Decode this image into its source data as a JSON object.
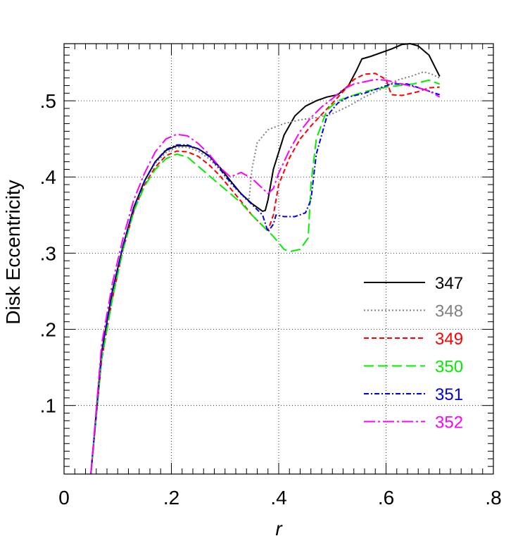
{
  "chart_data": {
    "type": "line",
    "title": "",
    "xlabel": "r",
    "ylabel": "Disk Eccentricity",
    "xlim": [
      0,
      0.8
    ],
    "ylim": [
      0.01,
      0.575
    ],
    "grid": true,
    "legend_position": "bottom-right",
    "x_ticks": [
      {
        "value": 0,
        "label": "0"
      },
      {
        "value": 0.2,
        "label": ".2"
      },
      {
        "value": 0.4,
        "label": ".4"
      },
      {
        "value": 0.6,
        "label": ".6"
      },
      {
        "value": 0.8,
        "label": ".8"
      }
    ],
    "y_ticks": [
      {
        "value": 0.1,
        "label": ".1"
      },
      {
        "value": 0.2,
        "label": ".2"
      },
      {
        "value": 0.3,
        "label": ".3"
      },
      {
        "value": 0.4,
        "label": ".4"
      },
      {
        "value": 0.5,
        "label": ".5"
      }
    ],
    "series": [
      {
        "name": "347",
        "color": "#000000",
        "dash": "solid",
        "points": [
          [
            0.05,
            0.01
          ],
          [
            0.07,
            0.17
          ],
          [
            0.09,
            0.25
          ],
          [
            0.11,
            0.31
          ],
          [
            0.13,
            0.36
          ],
          [
            0.15,
            0.395
          ],
          [
            0.17,
            0.42
          ],
          [
            0.19,
            0.435
          ],
          [
            0.21,
            0.441
          ],
          [
            0.23,
            0.441
          ],
          [
            0.25,
            0.437
          ],
          [
            0.27,
            0.428
          ],
          [
            0.29,
            0.413
          ],
          [
            0.31,
            0.395
          ],
          [
            0.33,
            0.378
          ],
          [
            0.35,
            0.365
          ],
          [
            0.37,
            0.355
          ],
          [
            0.375,
            0.356
          ],
          [
            0.38,
            0.37
          ],
          [
            0.39,
            0.41
          ],
          [
            0.41,
            0.455
          ],
          [
            0.43,
            0.48
          ],
          [
            0.45,
            0.493
          ],
          [
            0.47,
            0.5
          ],
          [
            0.49,
            0.505
          ],
          [
            0.51,
            0.508
          ],
          [
            0.53,
            0.52
          ],
          [
            0.545,
            0.54
          ],
          [
            0.555,
            0.555
          ],
          [
            0.57,
            0.558
          ],
          [
            0.59,
            0.563
          ],
          [
            0.61,
            0.568
          ],
          [
            0.63,
            0.574
          ],
          [
            0.645,
            0.575
          ],
          [
            0.66,
            0.572
          ],
          [
            0.68,
            0.56
          ],
          [
            0.7,
            0.532
          ]
        ]
      },
      {
        "name": "348",
        "color": "#808080",
        "dash": "dotted",
        "points": [
          [
            0.05,
            0.01
          ],
          [
            0.07,
            0.17
          ],
          [
            0.09,
            0.25
          ],
          [
            0.11,
            0.31
          ],
          [
            0.13,
            0.36
          ],
          [
            0.15,
            0.395
          ],
          [
            0.17,
            0.418
          ],
          [
            0.19,
            0.432
          ],
          [
            0.21,
            0.439
          ],
          [
            0.23,
            0.439
          ],
          [
            0.25,
            0.434
          ],
          [
            0.27,
            0.424
          ],
          [
            0.29,
            0.41
          ],
          [
            0.31,
            0.392
          ],
          [
            0.33,
            0.377
          ],
          [
            0.34,
            0.37
          ],
          [
            0.345,
            0.372
          ],
          [
            0.35,
            0.41
          ],
          [
            0.36,
            0.445
          ],
          [
            0.38,
            0.462
          ],
          [
            0.41,
            0.47
          ],
          [
            0.44,
            0.475
          ],
          [
            0.47,
            0.478
          ],
          [
            0.5,
            0.483
          ],
          [
            0.53,
            0.493
          ],
          [
            0.56,
            0.505
          ],
          [
            0.59,
            0.515
          ],
          [
            0.62,
            0.527
          ],
          [
            0.65,
            0.533
          ],
          [
            0.67,
            0.538
          ],
          [
            0.685,
            0.535
          ],
          [
            0.7,
            0.53
          ]
        ]
      },
      {
        "name": "349",
        "color": "#ff0000",
        "dash": "dashed",
        "points": [
          [
            0.05,
            0.01
          ],
          [
            0.07,
            0.16
          ],
          [
            0.09,
            0.24
          ],
          [
            0.11,
            0.305
          ],
          [
            0.13,
            0.355
          ],
          [
            0.15,
            0.39
          ],
          [
            0.17,
            0.413
          ],
          [
            0.19,
            0.428
          ],
          [
            0.21,
            0.434
          ],
          [
            0.23,
            0.433
          ],
          [
            0.25,
            0.427
          ],
          [
            0.27,
            0.416
          ],
          [
            0.29,
            0.402
          ],
          [
            0.31,
            0.385
          ],
          [
            0.33,
            0.368
          ],
          [
            0.35,
            0.35
          ],
          [
            0.37,
            0.336
          ],
          [
            0.38,
            0.33
          ],
          [
            0.39,
            0.35
          ],
          [
            0.4,
            0.39
          ],
          [
            0.42,
            0.425
          ],
          [
            0.44,
            0.45
          ],
          [
            0.46,
            0.467
          ],
          [
            0.48,
            0.482
          ],
          [
            0.5,
            0.497
          ],
          [
            0.52,
            0.512
          ],
          [
            0.54,
            0.528
          ],
          [
            0.56,
            0.535
          ],
          [
            0.58,
            0.536
          ],
          [
            0.6,
            0.528
          ],
          [
            0.61,
            0.508
          ],
          [
            0.63,
            0.507
          ],
          [
            0.66,
            0.512
          ],
          [
            0.68,
            0.517
          ],
          [
            0.7,
            0.518
          ]
        ]
      },
      {
        "name": "350",
        "color": "#00ee00",
        "dash": "longdash",
        "points": [
          [
            0.05,
            0.01
          ],
          [
            0.07,
            0.16
          ],
          [
            0.09,
            0.24
          ],
          [
            0.11,
            0.305
          ],
          [
            0.13,
            0.355
          ],
          [
            0.15,
            0.388
          ],
          [
            0.17,
            0.41
          ],
          [
            0.19,
            0.424
          ],
          [
            0.21,
            0.43
          ],
          [
            0.23,
            0.426
          ],
          [
            0.25,
            0.414
          ],
          [
            0.27,
            0.402
          ],
          [
            0.29,
            0.39
          ],
          [
            0.31,
            0.378
          ],
          [
            0.33,
            0.366
          ],
          [
            0.35,
            0.35
          ],
          [
            0.37,
            0.336
          ],
          [
            0.39,
            0.322
          ],
          [
            0.41,
            0.305
          ],
          [
            0.42,
            0.302
          ],
          [
            0.44,
            0.305
          ],
          [
            0.455,
            0.32
          ],
          [
            0.46,
            0.39
          ],
          [
            0.47,
            0.45
          ],
          [
            0.49,
            0.488
          ],
          [
            0.51,
            0.5
          ],
          [
            0.53,
            0.505
          ],
          [
            0.56,
            0.512
          ],
          [
            0.6,
            0.518
          ],
          [
            0.65,
            0.522
          ],
          [
            0.68,
            0.527
          ],
          [
            0.7,
            0.522
          ]
        ]
      },
      {
        "name": "351",
        "color": "#0000dd",
        "dash": "dashdot",
        "points": [
          [
            0.05,
            0.01
          ],
          [
            0.07,
            0.17
          ],
          [
            0.09,
            0.25
          ],
          [
            0.11,
            0.31
          ],
          [
            0.13,
            0.36
          ],
          [
            0.15,
            0.395
          ],
          [
            0.17,
            0.42
          ],
          [
            0.19,
            0.436
          ],
          [
            0.21,
            0.442
          ],
          [
            0.23,
            0.442
          ],
          [
            0.25,
            0.437
          ],
          [
            0.27,
            0.427
          ],
          [
            0.29,
            0.411
          ],
          [
            0.31,
            0.393
          ],
          [
            0.33,
            0.378
          ],
          [
            0.35,
            0.364
          ],
          [
            0.37,
            0.35
          ],
          [
            0.38,
            0.328
          ],
          [
            0.39,
            0.338
          ],
          [
            0.395,
            0.35
          ],
          [
            0.41,
            0.348
          ],
          [
            0.43,
            0.348
          ],
          [
            0.45,
            0.353
          ],
          [
            0.46,
            0.37
          ],
          [
            0.47,
            0.43
          ],
          [
            0.49,
            0.48
          ],
          [
            0.51,
            0.497
          ],
          [
            0.53,
            0.505
          ],
          [
            0.56,
            0.51
          ],
          [
            0.58,
            0.515
          ],
          [
            0.61,
            0.522
          ],
          [
            0.64,
            0.522
          ],
          [
            0.67,
            0.515
          ],
          [
            0.7,
            0.508
          ]
        ]
      },
      {
        "name": "352",
        "color": "#ff00ff",
        "dash": "longdashdot",
        "points": [
          [
            0.05,
            0.01
          ],
          [
            0.07,
            0.18
          ],
          [
            0.09,
            0.26
          ],
          [
            0.11,
            0.32
          ],
          [
            0.13,
            0.37
          ],
          [
            0.15,
            0.405
          ],
          [
            0.17,
            0.433
          ],
          [
            0.19,
            0.45
          ],
          [
            0.21,
            0.456
          ],
          [
            0.23,
            0.454
          ],
          [
            0.25,
            0.444
          ],
          [
            0.27,
            0.43
          ],
          [
            0.29,
            0.413
          ],
          [
            0.31,
            0.4
          ],
          [
            0.33,
            0.406
          ],
          [
            0.35,
            0.398
          ],
          [
            0.37,
            0.385
          ],
          [
            0.38,
            0.378
          ],
          [
            0.39,
            0.385
          ],
          [
            0.4,
            0.405
          ],
          [
            0.42,
            0.435
          ],
          [
            0.44,
            0.46
          ],
          [
            0.46,
            0.478
          ],
          [
            0.48,
            0.492
          ],
          [
            0.5,
            0.503
          ],
          [
            0.52,
            0.515
          ],
          [
            0.54,
            0.522
          ],
          [
            0.56,
            0.525
          ],
          [
            0.58,
            0.528
          ],
          [
            0.6,
            0.527
          ],
          [
            0.63,
            0.522
          ],
          [
            0.66,
            0.517
          ],
          [
            0.68,
            0.513
          ],
          [
            0.7,
            0.505
          ]
        ]
      }
    ]
  }
}
